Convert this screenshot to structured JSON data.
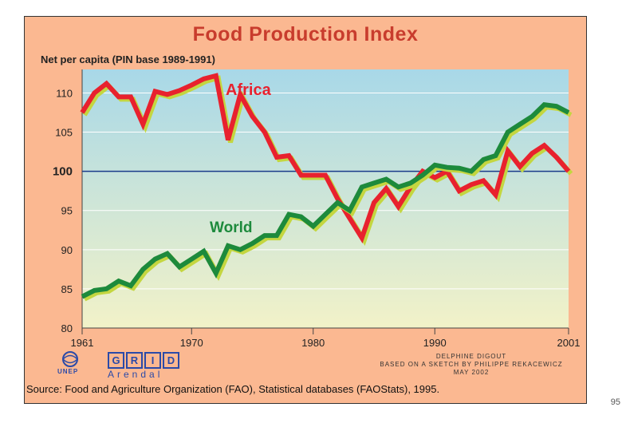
{
  "title": "Food Production Index",
  "subtitle": "Net per capita (PIN base 1989-1991)",
  "logos": {
    "unep": "UNEP",
    "grid_letters": [
      "G",
      "R",
      "I",
      "D"
    ],
    "arendal": "Arendal"
  },
  "credits": {
    "line1": "DELPHINE DIGOUT",
    "line2": "BASED ON A SKETCH BY PHILIPPE REKACEWICZ",
    "line3": "MAY 2002"
  },
  "source": "Source: Food and Agriculture Organization (FAO), Statistical databases (FAOStats), 1995.",
  "page_number": "95",
  "colors": {
    "africa": "#e8212e",
    "world": "#1d8a3c",
    "shadow": "#c4d640",
    "baseline": "#1a3a8a",
    "bg_top": "#a8d8e8",
    "bg_bottom": "#f2f2c8"
  },
  "chart_data": {
    "type": "line",
    "title": "Food Production Index",
    "ylabel": "Net per capita (PIN base 1989-1991)",
    "xlabel": "",
    "xlim": [
      1961,
      2001
    ],
    "ylim": [
      80,
      113
    ],
    "x_ticks": [
      1961,
      1970,
      1980,
      1990,
      2001
    ],
    "y_ticks": [
      80,
      85,
      90,
      95,
      100,
      105,
      110
    ],
    "reference_line": 100,
    "x": [
      1961,
      1962,
      1963,
      1964,
      1965,
      1966,
      1967,
      1968,
      1969,
      1970,
      1971,
      1972,
      1973,
      1974,
      1975,
      1976,
      1977,
      1978,
      1979,
      1980,
      1981,
      1982,
      1983,
      1984,
      1985,
      1986,
      1987,
      1988,
      1989,
      1990,
      1991,
      1992,
      1993,
      1994,
      1995,
      1996,
      1997,
      1998,
      1999,
      2000,
      2001
    ],
    "series": [
      {
        "name": "Africa",
        "label": "Africa",
        "values": [
          107.5,
          110,
          111.2,
          109.5,
          109.5,
          106,
          110.2,
          109.8,
          110.3,
          111,
          111.8,
          112.2,
          104,
          109.8,
          107,
          105,
          101.8,
          102,
          99.5,
          99.5,
          99.5,
          96.5,
          94,
          91.5,
          96,
          97.8,
          95.5,
          98,
          100,
          99.2,
          100,
          97.5,
          98.3,
          98.8,
          97,
          102.6,
          100.6,
          102.3,
          103.3,
          101.8,
          100
        ]
      },
      {
        "name": "World",
        "label": "World",
        "values": [
          84,
          84.8,
          85,
          86,
          85.4,
          87.5,
          88.8,
          89.5,
          87.8,
          88.8,
          89.8,
          87,
          90.5,
          90,
          90.8,
          91.8,
          91.8,
          94.5,
          94.2,
          93,
          94.5,
          96,
          95,
          98,
          98.5,
          99,
          98,
          98.5,
          99.5,
          100.8,
          100.5,
          100.4,
          100,
          101.5,
          102,
          105,
          106,
          107,
          108.5,
          108.3,
          107.5
        ]
      }
    ]
  }
}
